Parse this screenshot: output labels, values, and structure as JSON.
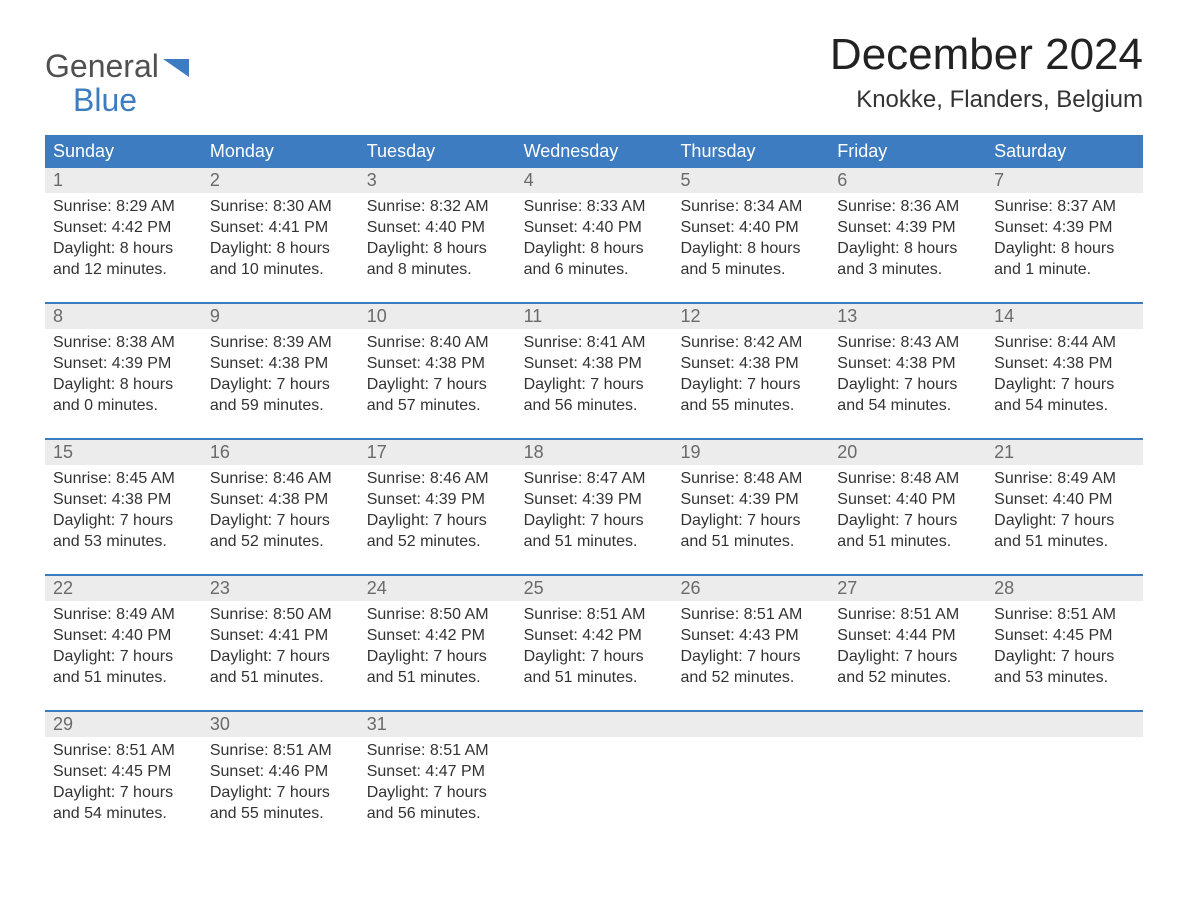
{
  "logo": {
    "line1": "General",
    "line2": "Blue"
  },
  "title": "December 2024",
  "location": "Knokke, Flanders, Belgium",
  "colors": {
    "header_bg": "#3d7cc0",
    "header_text": "#ffffff",
    "daynum_bg": "#ececec",
    "daynum_text": "#6a6a6a",
    "week_border": "#3d7cc0",
    "body_text": "#333333",
    "logo_blue": "#3d7cc0",
    "logo_gray": "#505050",
    "page_bg": "#ffffff"
  },
  "typography": {
    "title_fontsize": 44,
    "location_fontsize": 24,
    "header_fontsize": 18,
    "daynum_fontsize": 18,
    "body_fontsize": 16,
    "logo_fontsize": 32
  },
  "day_headers": [
    "Sunday",
    "Monday",
    "Tuesday",
    "Wednesday",
    "Thursday",
    "Friday",
    "Saturday"
  ],
  "weeks": [
    [
      {
        "num": "1",
        "sunrise": "Sunrise: 8:29 AM",
        "sunset": "Sunset: 4:42 PM",
        "daylight": "Daylight: 8 hours\nand 12 minutes."
      },
      {
        "num": "2",
        "sunrise": "Sunrise: 8:30 AM",
        "sunset": "Sunset: 4:41 PM",
        "daylight": "Daylight: 8 hours\nand 10 minutes."
      },
      {
        "num": "3",
        "sunrise": "Sunrise: 8:32 AM",
        "sunset": "Sunset: 4:40 PM",
        "daylight": "Daylight: 8 hours\nand 8 minutes."
      },
      {
        "num": "4",
        "sunrise": "Sunrise: 8:33 AM",
        "sunset": "Sunset: 4:40 PM",
        "daylight": "Daylight: 8 hours\nand 6 minutes."
      },
      {
        "num": "5",
        "sunrise": "Sunrise: 8:34 AM",
        "sunset": "Sunset: 4:40 PM",
        "daylight": "Daylight: 8 hours\nand 5 minutes."
      },
      {
        "num": "6",
        "sunrise": "Sunrise: 8:36 AM",
        "sunset": "Sunset: 4:39 PM",
        "daylight": "Daylight: 8 hours\nand 3 minutes."
      },
      {
        "num": "7",
        "sunrise": "Sunrise: 8:37 AM",
        "sunset": "Sunset: 4:39 PM",
        "daylight": "Daylight: 8 hours\nand 1 minute."
      }
    ],
    [
      {
        "num": "8",
        "sunrise": "Sunrise: 8:38 AM",
        "sunset": "Sunset: 4:39 PM",
        "daylight": "Daylight: 8 hours\nand 0 minutes."
      },
      {
        "num": "9",
        "sunrise": "Sunrise: 8:39 AM",
        "sunset": "Sunset: 4:38 PM",
        "daylight": "Daylight: 7 hours\nand 59 minutes."
      },
      {
        "num": "10",
        "sunrise": "Sunrise: 8:40 AM",
        "sunset": "Sunset: 4:38 PM",
        "daylight": "Daylight: 7 hours\nand 57 minutes."
      },
      {
        "num": "11",
        "sunrise": "Sunrise: 8:41 AM",
        "sunset": "Sunset: 4:38 PM",
        "daylight": "Daylight: 7 hours\nand 56 minutes."
      },
      {
        "num": "12",
        "sunrise": "Sunrise: 8:42 AM",
        "sunset": "Sunset: 4:38 PM",
        "daylight": "Daylight: 7 hours\nand 55 minutes."
      },
      {
        "num": "13",
        "sunrise": "Sunrise: 8:43 AM",
        "sunset": "Sunset: 4:38 PM",
        "daylight": "Daylight: 7 hours\nand 54 minutes."
      },
      {
        "num": "14",
        "sunrise": "Sunrise: 8:44 AM",
        "sunset": "Sunset: 4:38 PM",
        "daylight": "Daylight: 7 hours\nand 54 minutes."
      }
    ],
    [
      {
        "num": "15",
        "sunrise": "Sunrise: 8:45 AM",
        "sunset": "Sunset: 4:38 PM",
        "daylight": "Daylight: 7 hours\nand 53 minutes."
      },
      {
        "num": "16",
        "sunrise": "Sunrise: 8:46 AM",
        "sunset": "Sunset: 4:38 PM",
        "daylight": "Daylight: 7 hours\nand 52 minutes."
      },
      {
        "num": "17",
        "sunrise": "Sunrise: 8:46 AM",
        "sunset": "Sunset: 4:39 PM",
        "daylight": "Daylight: 7 hours\nand 52 minutes."
      },
      {
        "num": "18",
        "sunrise": "Sunrise: 8:47 AM",
        "sunset": "Sunset: 4:39 PM",
        "daylight": "Daylight: 7 hours\nand 51 minutes."
      },
      {
        "num": "19",
        "sunrise": "Sunrise: 8:48 AM",
        "sunset": "Sunset: 4:39 PM",
        "daylight": "Daylight: 7 hours\nand 51 minutes."
      },
      {
        "num": "20",
        "sunrise": "Sunrise: 8:48 AM",
        "sunset": "Sunset: 4:40 PM",
        "daylight": "Daylight: 7 hours\nand 51 minutes."
      },
      {
        "num": "21",
        "sunrise": "Sunrise: 8:49 AM",
        "sunset": "Sunset: 4:40 PM",
        "daylight": "Daylight: 7 hours\nand 51 minutes."
      }
    ],
    [
      {
        "num": "22",
        "sunrise": "Sunrise: 8:49 AM",
        "sunset": "Sunset: 4:40 PM",
        "daylight": "Daylight: 7 hours\nand 51 minutes."
      },
      {
        "num": "23",
        "sunrise": "Sunrise: 8:50 AM",
        "sunset": "Sunset: 4:41 PM",
        "daylight": "Daylight: 7 hours\nand 51 minutes."
      },
      {
        "num": "24",
        "sunrise": "Sunrise: 8:50 AM",
        "sunset": "Sunset: 4:42 PM",
        "daylight": "Daylight: 7 hours\nand 51 minutes."
      },
      {
        "num": "25",
        "sunrise": "Sunrise: 8:51 AM",
        "sunset": "Sunset: 4:42 PM",
        "daylight": "Daylight: 7 hours\nand 51 minutes."
      },
      {
        "num": "26",
        "sunrise": "Sunrise: 8:51 AM",
        "sunset": "Sunset: 4:43 PM",
        "daylight": "Daylight: 7 hours\nand 52 minutes."
      },
      {
        "num": "27",
        "sunrise": "Sunrise: 8:51 AM",
        "sunset": "Sunset: 4:44 PM",
        "daylight": "Daylight: 7 hours\nand 52 minutes."
      },
      {
        "num": "28",
        "sunrise": "Sunrise: 8:51 AM",
        "sunset": "Sunset: 4:45 PM",
        "daylight": "Daylight: 7 hours\nand 53 minutes."
      }
    ],
    [
      {
        "num": "29",
        "sunrise": "Sunrise: 8:51 AM",
        "sunset": "Sunset: 4:45 PM",
        "daylight": "Daylight: 7 hours\nand 54 minutes."
      },
      {
        "num": "30",
        "sunrise": "Sunrise: 8:51 AM",
        "sunset": "Sunset: 4:46 PM",
        "daylight": "Daylight: 7 hours\nand 55 minutes."
      },
      {
        "num": "31",
        "sunrise": "Sunrise: 8:51 AM",
        "sunset": "Sunset: 4:47 PM",
        "daylight": "Daylight: 7 hours\nand 56 minutes."
      },
      {
        "num": "",
        "sunrise": "",
        "sunset": "",
        "daylight": "",
        "empty": true
      },
      {
        "num": "",
        "sunrise": "",
        "sunset": "",
        "daylight": "",
        "empty": true
      },
      {
        "num": "",
        "sunrise": "",
        "sunset": "",
        "daylight": "",
        "empty": true
      },
      {
        "num": "",
        "sunrise": "",
        "sunset": "",
        "daylight": "",
        "empty": true
      }
    ]
  ]
}
